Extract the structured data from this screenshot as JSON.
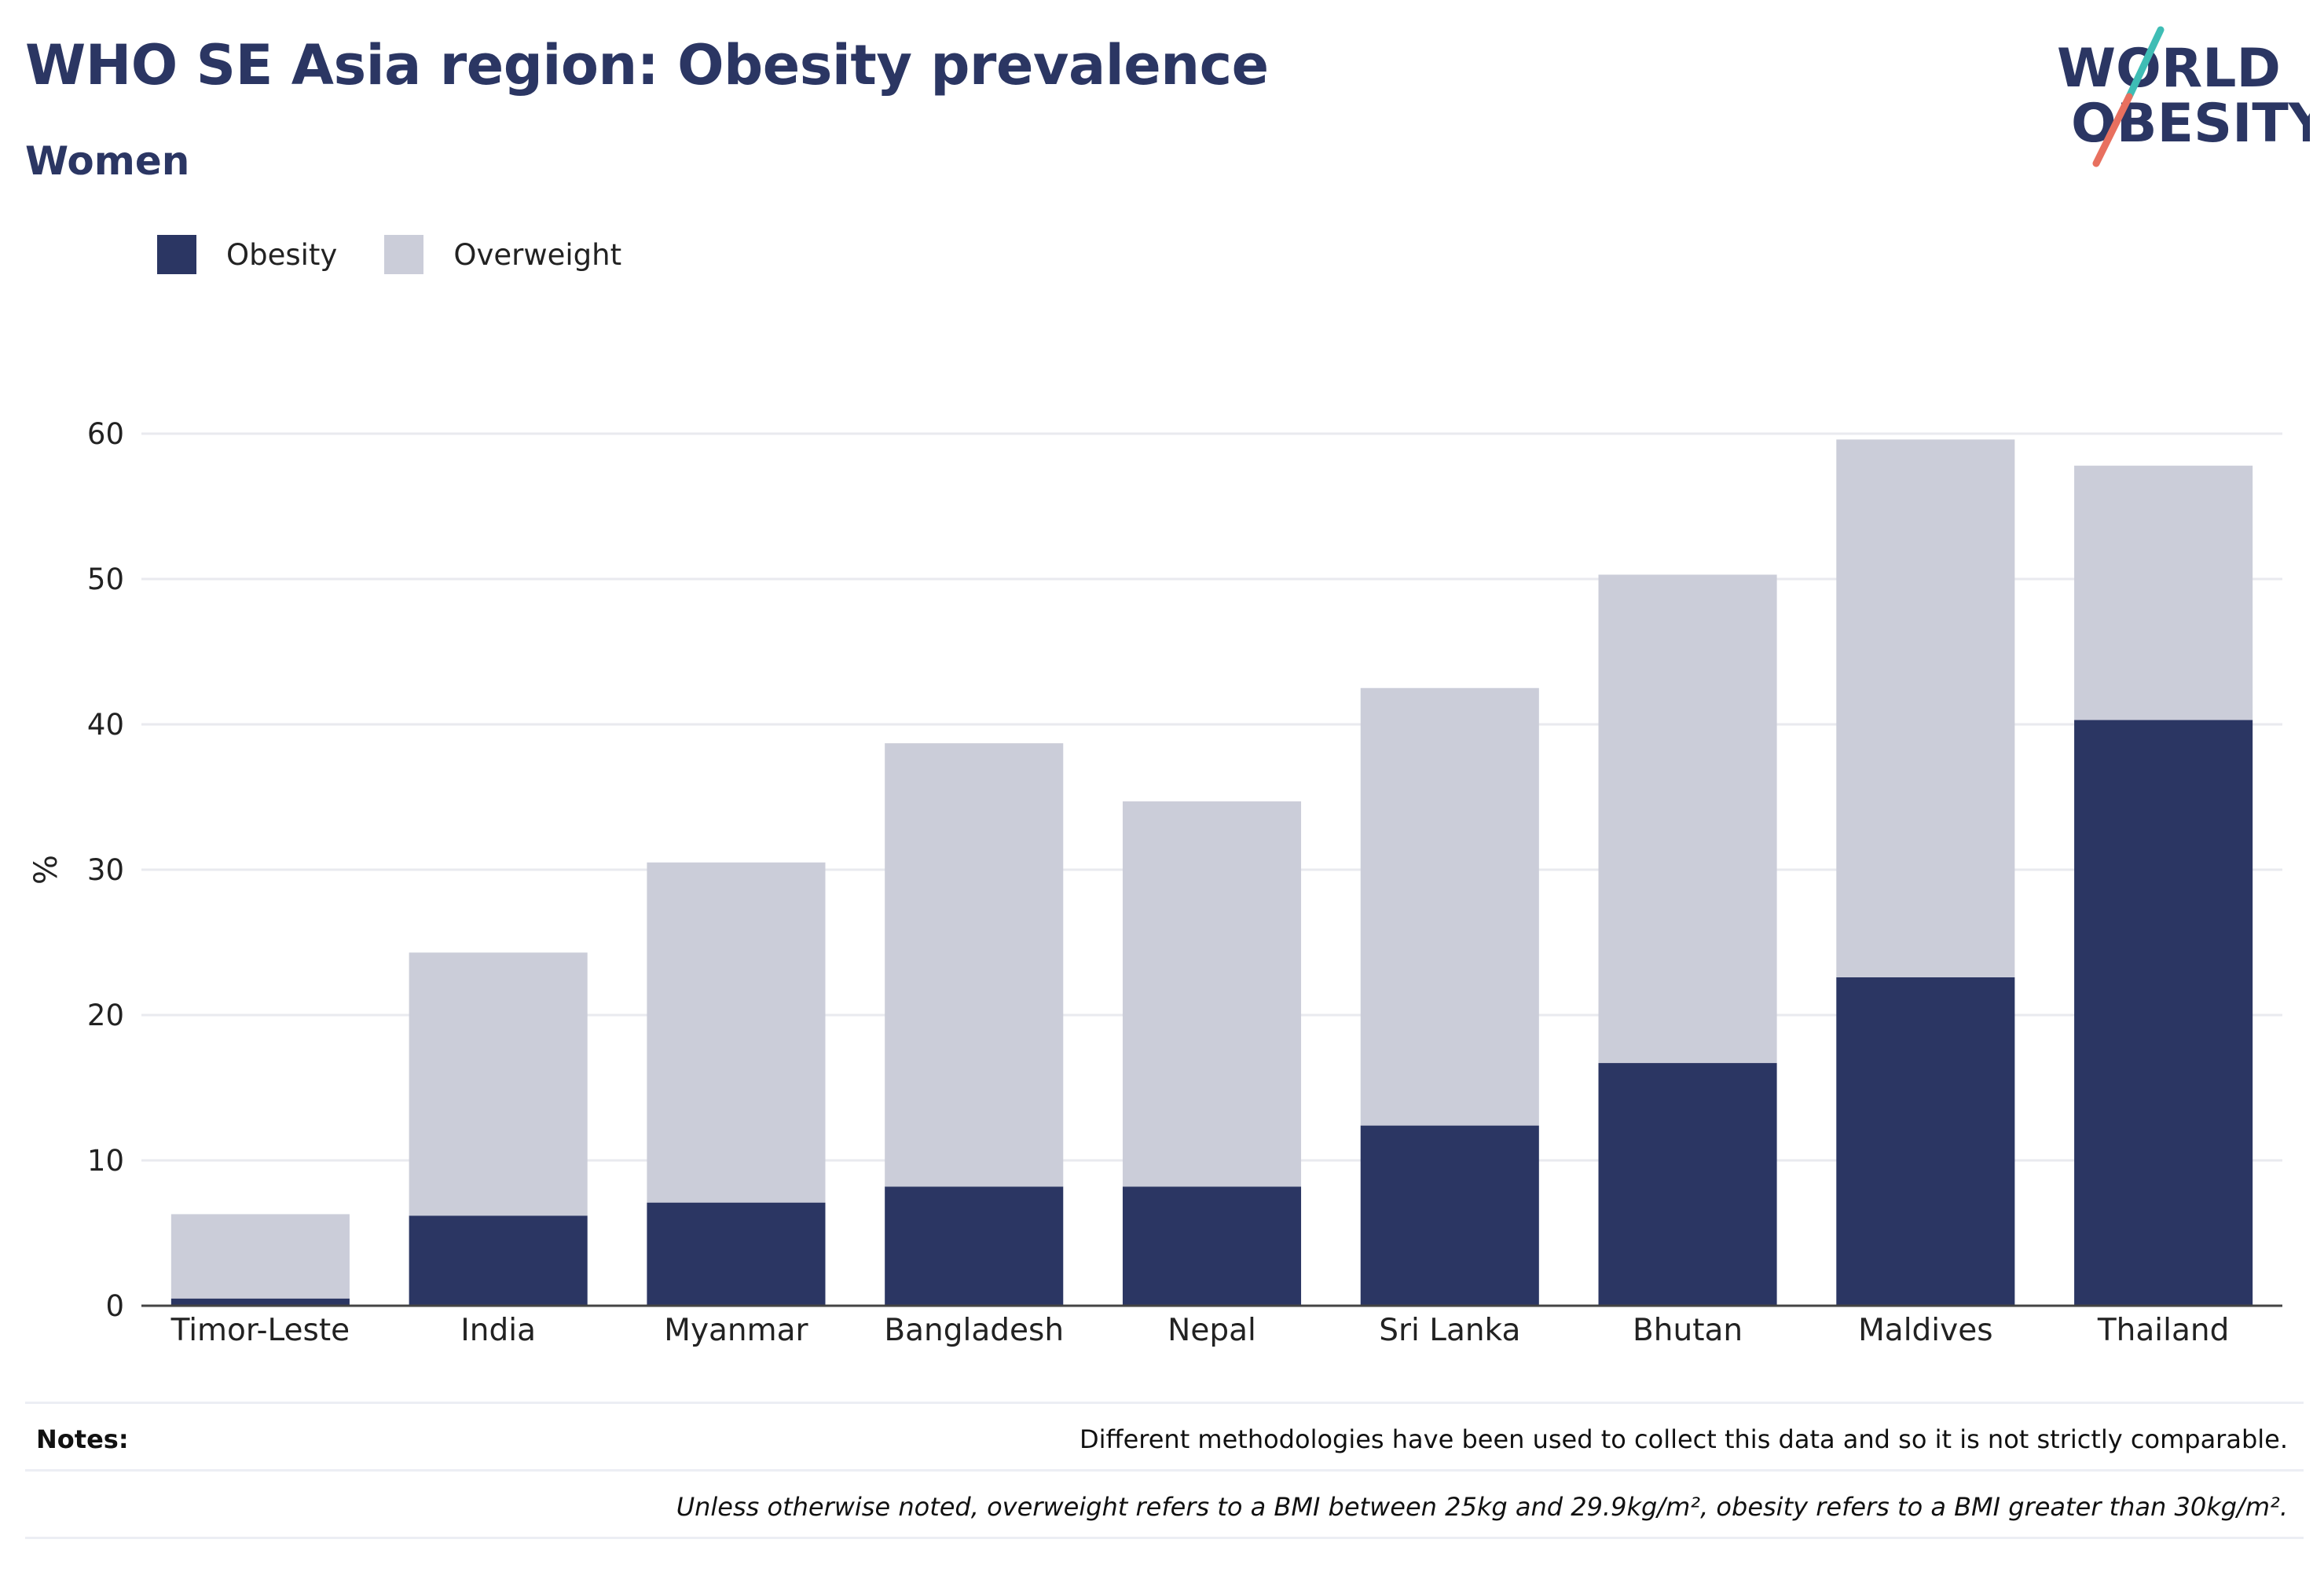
{
  "header": {
    "title": "WHO SE Asia region: Obesity prevalence",
    "subtitle": "Women"
  },
  "logo": {
    "line1": "WORLD",
    "line2": "OBESITY",
    "accent_colors": [
      "#3fbdb5",
      "#e8705f"
    ]
  },
  "colors": {
    "obesity": "#2b3663",
    "overweight": "#cbcdd9",
    "gridline": "#e9eaef",
    "axis": "#444444"
  },
  "legend": {
    "items": [
      {
        "label": "Obesity",
        "color": "#2b3663"
      },
      {
        "label": "Overweight",
        "color": "#cbcdd9"
      }
    ]
  },
  "chart_data": {
    "type": "bar",
    "stacked": true,
    "categories": [
      "Timor-Leste",
      "India",
      "Myanmar",
      "Bangladesh",
      "Nepal",
      "Sri Lanka",
      "Bhutan",
      "Maldives",
      "Thailand"
    ],
    "series": [
      {
        "name": "Obesity",
        "values": [
          0.5,
          6.2,
          7.1,
          8.2,
          8.2,
          12.4,
          16.7,
          22.6,
          40.3
        ]
      },
      {
        "name": "Overweight",
        "values": [
          5.8,
          18.1,
          23.4,
          30.5,
          26.5,
          30.1,
          33.6,
          37.0,
          17.5
        ]
      }
    ],
    "ylabel": "%",
    "xlabel": "",
    "ylim": [
      0,
      60
    ],
    "yticks": [
      0,
      10,
      20,
      30,
      40,
      50,
      60
    ],
    "grid": true,
    "legend_position": "top-left"
  },
  "notes": {
    "label": "Notes:",
    "line1": "Different methodologies have been used to collect this data and so it is not strictly comparable.",
    "line2": "Unless otherwise noted, overweight refers to a BMI between 25kg and 29.9kg/m², obesity refers to a BMI greater than 30kg/m²."
  }
}
